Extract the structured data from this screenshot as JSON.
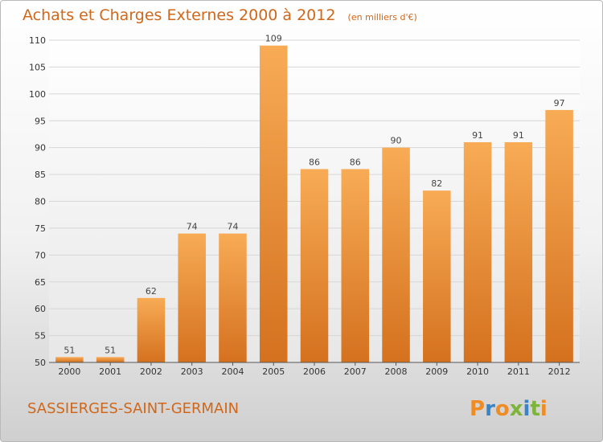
{
  "title": "Achats et Charges Externes 2000 à 2012",
  "unit_note": "(en milliers d'€)",
  "commune": "SASSIERGES-SAINT-GERMAIN",
  "logo": {
    "text": "Proxiti",
    "colors": [
      "#f08c24",
      "#3a83c4",
      "#f08c24",
      "#7db43a",
      "#3a83c4",
      "#7db43a",
      "#f08c24"
    ]
  },
  "colors": {
    "accent": "#d0671a",
    "bar_light": "#f6a650",
    "bar_dark": "#d57322"
  },
  "chart_data": {
    "type": "bar",
    "categories": [
      "2000",
      "2001",
      "2002",
      "2003",
      "2004",
      "2005",
      "2006",
      "2007",
      "2008",
      "2009",
      "2010",
      "2011",
      "2012"
    ],
    "values": [
      51,
      51,
      62,
      74,
      74,
      109,
      86,
      86,
      90,
      82,
      91,
      91,
      97
    ],
    "data_labels": [
      "51",
      "51",
      "62",
      "74",
      "74",
      "109",
      "86",
      "86",
      "90",
      "82",
      "91",
      "91",
      "97"
    ],
    "ylim": [
      50,
      110
    ],
    "yticks": [
      50,
      55,
      60,
      65,
      70,
      75,
      80,
      85,
      90,
      95,
      100,
      105,
      110
    ],
    "grid": true,
    "xlabel": "",
    "ylabel": ""
  }
}
